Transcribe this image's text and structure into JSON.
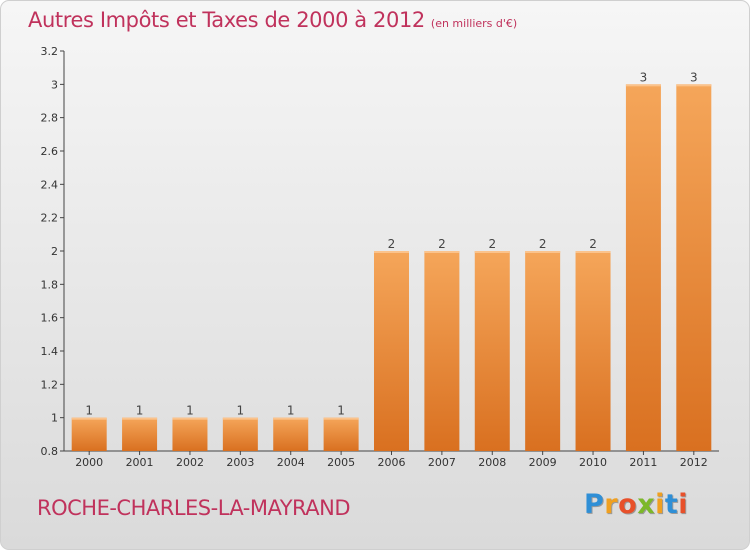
{
  "header": {
    "title": "Autres Impôts et Taxes de 2000 à 2012",
    "unit": "(en milliers d'€)"
  },
  "footer": {
    "commune": "ROCHE-CHARLES-LA-MAYRAND",
    "brand_letters": [
      "P",
      "r",
      "o",
      "x",
      "i",
      "t",
      "i"
    ]
  },
  "colors": {
    "title": "#c0325c",
    "bar_light": "#f5a65a",
    "bar_dark": "#d97020",
    "axis": "#444444"
  },
  "chart_data": {
    "type": "bar",
    "title": "Autres Impôts et Taxes de 2000 à 2012",
    "categories": [
      "2000",
      "2001",
      "2002",
      "2003",
      "2004",
      "2005",
      "2006",
      "2007",
      "2008",
      "2009",
      "2010",
      "2011",
      "2012"
    ],
    "values": [
      1,
      1,
      1,
      1,
      1,
      1,
      2,
      2,
      2,
      2,
      2,
      3,
      3
    ],
    "data_labels": [
      "1",
      "1",
      "1",
      "1",
      "1",
      "1",
      "2",
      "2",
      "2",
      "2",
      "2",
      "3",
      "3"
    ],
    "xlabel": "",
    "ylabel": "",
    "ylim": [
      0.8,
      3.2
    ],
    "yticks": [
      0.8,
      1,
      1.2,
      1.4,
      1.6,
      1.8,
      2,
      2.2,
      2.4,
      2.6,
      2.8,
      3,
      3.2
    ],
    "ytick_labels": [
      "0.8",
      "1",
      "1.2",
      "1.4",
      "1.6",
      "1.8",
      "2",
      "2.2",
      "2.4",
      "2.6",
      "2.8",
      "3",
      "3.2"
    ],
    "grid": false,
    "legend": "none"
  }
}
